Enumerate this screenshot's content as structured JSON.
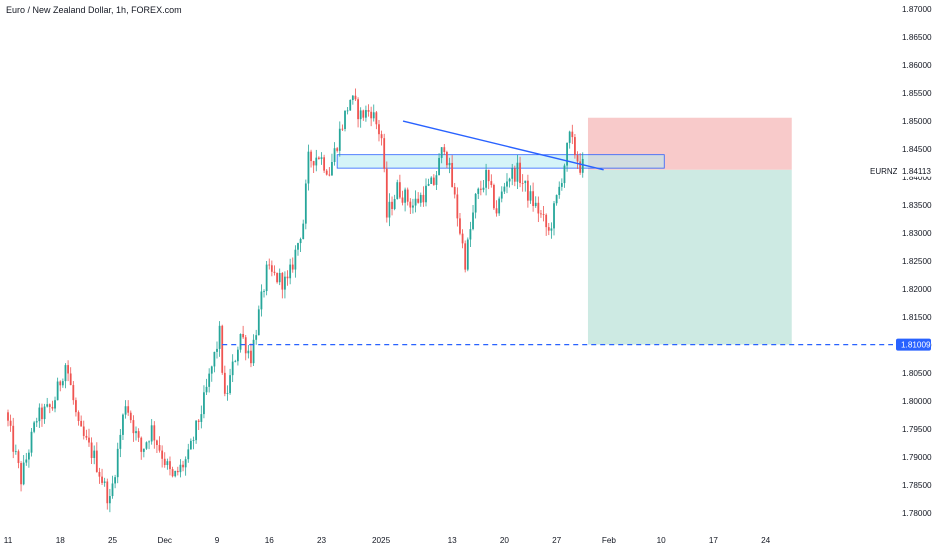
{
  "header": {
    "title": "Euro / New Zealand Dollar, 1h, FOREX.com"
  },
  "colors": {
    "up": "#26a69a",
    "down": "#ef5350",
    "trendline": "#2962ff",
    "zone_fill": "#b2ebf2",
    "zone_stroke": "#2962ff",
    "stop_fill": "#f8caca",
    "target_fill": "#cdeae3",
    "target_line": "#2962ff",
    "price_tag_bg": "#2962ff"
  },
  "chart_data": {
    "type": "candlestick",
    "symbol": "EURNZD",
    "ylim": [
      1.778,
      1.871
    ],
    "y_ticks": [
      1.87,
      1.865,
      1.86,
      1.855,
      1.85,
      1.845,
      1.84,
      1.835,
      1.83,
      1.825,
      1.82,
      1.815,
      1.81,
      1.805,
      1.8,
      1.795,
      1.79,
      1.785,
      1.78
    ],
    "y_tick_labels": [
      "1.87000",
      "1.86500",
      "1.86000",
      "1.85500",
      "1.85000",
      "1.84500",
      "1.84000",
      "1.83500",
      "1.83000",
      "1.82500",
      "1.82000",
      "1.81500",
      "1.81000",
      "1.80500",
      "1.80000",
      "1.79500",
      "1.79000",
      "1.78500",
      "1.78000"
    ],
    "x_ticks": [
      {
        "label": "11",
        "day": 0
      },
      {
        "label": "18",
        "day": 5
      },
      {
        "label": "25",
        "day": 10
      },
      {
        "label": "Dec",
        "day": 15
      },
      {
        "label": "9",
        "day": 20
      },
      {
        "label": "16",
        "day": 25
      },
      {
        "label": "23",
        "day": 30
      },
      {
        "label": "2025",
        "day": 35.7
      },
      {
        "label": "13",
        "day": 42.5
      },
      {
        "label": "20",
        "day": 47.5
      },
      {
        "label": "27",
        "day": 52.5
      },
      {
        "label": "Feb",
        "day": 57.5
      },
      {
        "label": "10",
        "day": 62.5
      },
      {
        "label": "17",
        "day": 67.5
      },
      {
        "label": "24",
        "day": 72.5
      }
    ],
    "current_price_label": "EURNZD",
    "current_price": "1.84113",
    "target_price": "1.81009",
    "path_anchors": [
      [
        0,
        1.798
      ],
      [
        1.5,
        1.786
      ],
      [
        3,
        1.797
      ],
      [
        4.5,
        1.799
      ],
      [
        5.8,
        1.807
      ],
      [
        7,
        1.795
      ],
      [
        8.5,
        1.79
      ],
      [
        10,
        1.782
      ],
      [
        11.5,
        1.8
      ],
      [
        13,
        1.791
      ],
      [
        14,
        1.795
      ],
      [
        16,
        1.786
      ],
      [
        17.5,
        1.79
      ],
      [
        19,
        1.8
      ],
      [
        20.5,
        1.812
      ],
      [
        21,
        1.8
      ],
      [
        22.5,
        1.812
      ],
      [
        23.5,
        1.808
      ],
      [
        25,
        1.823
      ],
      [
        27,
        1.821
      ],
      [
        28.5,
        1.832
      ],
      [
        29,
        1.843
      ],
      [
        30,
        1.844
      ],
      [
        31,
        1.841
      ],
      [
        32,
        1.848
      ],
      [
        33,
        1.854
      ],
      [
        34,
        1.851
      ],
      [
        35,
        1.852
      ],
      [
        36,
        1.847
      ],
      [
        36.5,
        1.833
      ],
      [
        37.5,
        1.838
      ],
      [
        39,
        1.835
      ],
      [
        41,
        1.839
      ],
      [
        42,
        1.846
      ],
      [
        43,
        1.836
      ],
      [
        44,
        1.825
      ],
      [
        45,
        1.836
      ],
      [
        46,
        1.84
      ],
      [
        47,
        1.834
      ],
      [
        48,
        1.84
      ],
      [
        49,
        1.841
      ],
      [
        50,
        1.837
      ],
      [
        51,
        1.834
      ],
      [
        52,
        1.83
      ],
      [
        53,
        1.838
      ],
      [
        54,
        1.847
      ],
      [
        55,
        1.842
      ]
    ],
    "trendline": {
      "from": [
        37.8,
        1.85
      ],
      "to": [
        57,
        1.8413
      ]
    },
    "zone": {
      "day_from": 31.5,
      "day_to": 62.8,
      "price_top": 1.844,
      "price_bottom": 1.8416
    },
    "position": {
      "day_from": 55.5,
      "day_to": 75,
      "entry": 1.8413,
      "stop": 1.8506,
      "target": 1.8101
    },
    "target_line_day_from": 20.5
  }
}
